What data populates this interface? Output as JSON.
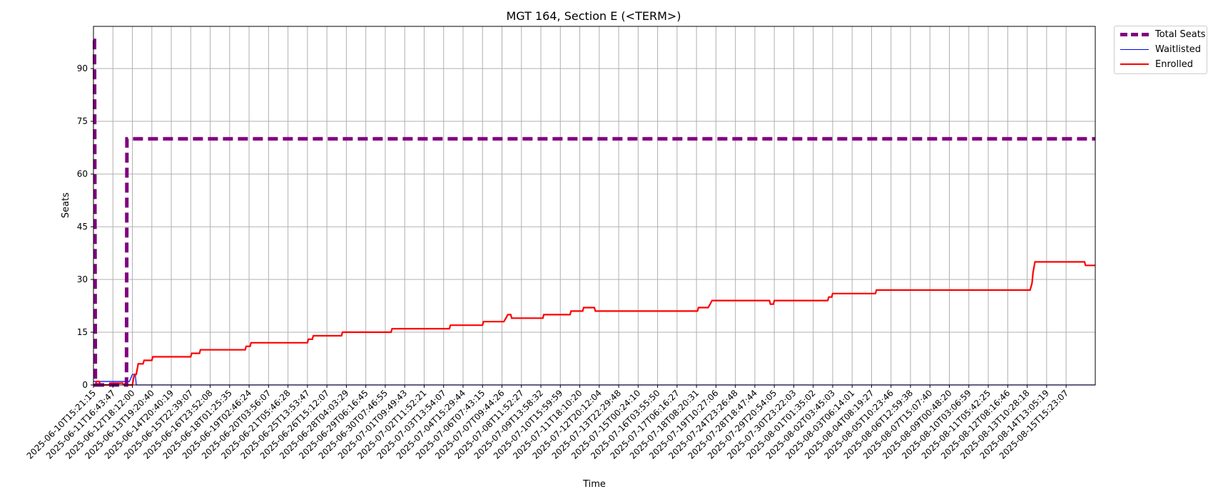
{
  "chart_data": {
    "type": "line",
    "title": "MGT 164, Section E (<TERM>)",
    "xlabel": "Time",
    "ylabel": "Seats",
    "ylim": [
      0,
      102
    ],
    "yticks": [
      0,
      15,
      30,
      45,
      60,
      75,
      90
    ],
    "grid": true,
    "legend_placement": "outside-top-right",
    "x_tick_labels": [
      "2025-06-10T15:21:15",
      "2025-06-11T16:43:47",
      "2025-06-12T18:12:00",
      "2025-06-13T19:20:40",
      "2025-06-14T20:40:19",
      "2025-06-15T22:39:07",
      "2025-06-16T23:52:08",
      "2025-06-18T01:25:35",
      "2025-06-19T02:46:24",
      "2025-06-20T03:56:07",
      "2025-06-21T05:46:28",
      "2025-06-25T13:53:47",
      "2025-06-26T15:12:07",
      "2025-06-28T04:03:29",
      "2025-06-29T06:16:45",
      "2025-06-30T07:46:55",
      "2025-07-01T09:49:43",
      "2025-07-02T11:52:21",
      "2025-07-03T13:54:07",
      "2025-07-04T15:29:44",
      "2025-07-06T07:43:15",
      "2025-07-07T09:44:26",
      "2025-07-08T11:52:27",
      "2025-07-09T13:58:32",
      "2025-07-10T15:59:59",
      "2025-07-11T18:10:20",
      "2025-07-12T20:12:04",
      "2025-07-13T22:29:48",
      "2025-07-15T00:24:10",
      "2025-07-16T03:55:50",
      "2025-07-17T06:16:27",
      "2025-07-18T08:20:31",
      "2025-07-19T10:27:06",
      "2025-07-24T23:26:48",
      "2025-07-28T18:47:44",
      "2025-07-29T20:54:05",
      "2025-07-30T23:22:03",
      "2025-08-01T01:35:02",
      "2025-08-02T03:45:03",
      "2025-08-03T06:14:01",
      "2025-08-04T08:19:27",
      "2025-08-05T10:23:46",
      "2025-08-06T12:59:38",
      "2025-08-07T15:07:40",
      "2025-08-09T00:48:20",
      "2025-08-10T03:06:59",
      "2025-08-11T05:42:25",
      "2025-08-12T08:16:46",
      "2025-08-13T10:28:18",
      "2025-08-14T13:05:19",
      "2025-08-15T15:23:07"
    ],
    "x_domain": [
      0,
      51.5
    ],
    "series": [
      {
        "name": "Total Seats",
        "color": "#800080",
        "style": "dashed",
        "points": [
          [
            0,
            98
          ],
          [
            0.05,
            98
          ],
          [
            0.1,
            0
          ],
          [
            1.7,
            0
          ],
          [
            1.72,
            70
          ],
          [
            51.5,
            70
          ]
        ]
      },
      {
        "name": "Waitlisted",
        "color": "#0000ff",
        "style": "solid",
        "points": [
          [
            0,
            1
          ],
          [
            1.85,
            1
          ],
          [
            2.0,
            3
          ],
          [
            2.15,
            3
          ],
          [
            2.2,
            0
          ],
          [
            51.5,
            0
          ]
        ]
      },
      {
        "name": "Enrolled",
        "color": "#ff0000",
        "style": "solid",
        "points": [
          [
            0,
            0
          ],
          [
            0.1,
            0
          ],
          [
            0.15,
            1
          ],
          [
            0.3,
            1
          ],
          [
            0.35,
            0
          ],
          [
            0.8,
            0
          ],
          [
            0.85,
            0.5
          ],
          [
            1.5,
            0.5
          ],
          [
            1.55,
            0
          ],
          [
            2.0,
            0
          ],
          [
            2.1,
            3
          ],
          [
            2.2,
            3
          ],
          [
            2.3,
            6
          ],
          [
            2.55,
            6
          ],
          [
            2.6,
            7
          ],
          [
            3.0,
            7
          ],
          [
            3.05,
            8
          ],
          [
            5.0,
            8
          ],
          [
            5.05,
            9
          ],
          [
            5.45,
            9
          ],
          [
            5.5,
            10
          ],
          [
            7.8,
            10
          ],
          [
            7.85,
            11
          ],
          [
            8.05,
            11
          ],
          [
            8.1,
            12
          ],
          [
            11.0,
            12
          ],
          [
            11.05,
            13
          ],
          [
            11.25,
            13
          ],
          [
            11.3,
            14
          ],
          [
            12.75,
            14
          ],
          [
            12.8,
            15
          ],
          [
            15.3,
            15
          ],
          [
            15.35,
            16
          ],
          [
            18.3,
            16
          ],
          [
            18.35,
            17
          ],
          [
            20.0,
            17
          ],
          [
            20.05,
            18
          ],
          [
            21.1,
            18
          ],
          [
            21.2,
            19
          ],
          [
            21.3,
            20
          ],
          [
            21.45,
            20
          ],
          [
            21.5,
            19
          ],
          [
            23.1,
            19
          ],
          [
            23.15,
            20
          ],
          [
            24.5,
            20
          ],
          [
            24.55,
            21
          ],
          [
            25.15,
            21
          ],
          [
            25.2,
            22
          ],
          [
            25.75,
            22
          ],
          [
            25.8,
            21
          ],
          [
            31.05,
            21
          ],
          [
            31.1,
            22
          ],
          [
            31.6,
            22
          ],
          [
            31.7,
            23
          ],
          [
            31.8,
            24
          ],
          [
            34.75,
            24
          ],
          [
            34.8,
            23
          ],
          [
            34.95,
            23
          ],
          [
            35.0,
            24
          ],
          [
            37.75,
            24
          ],
          [
            37.8,
            25
          ],
          [
            37.95,
            25
          ],
          [
            38.0,
            26
          ],
          [
            40.2,
            26
          ],
          [
            40.25,
            27
          ],
          [
            48.15,
            27
          ],
          [
            48.25,
            29
          ],
          [
            48.3,
            32
          ],
          [
            48.4,
            35
          ],
          [
            50.95,
            35
          ],
          [
            51.0,
            34
          ],
          [
            51.5,
            34
          ]
        ]
      }
    ]
  }
}
